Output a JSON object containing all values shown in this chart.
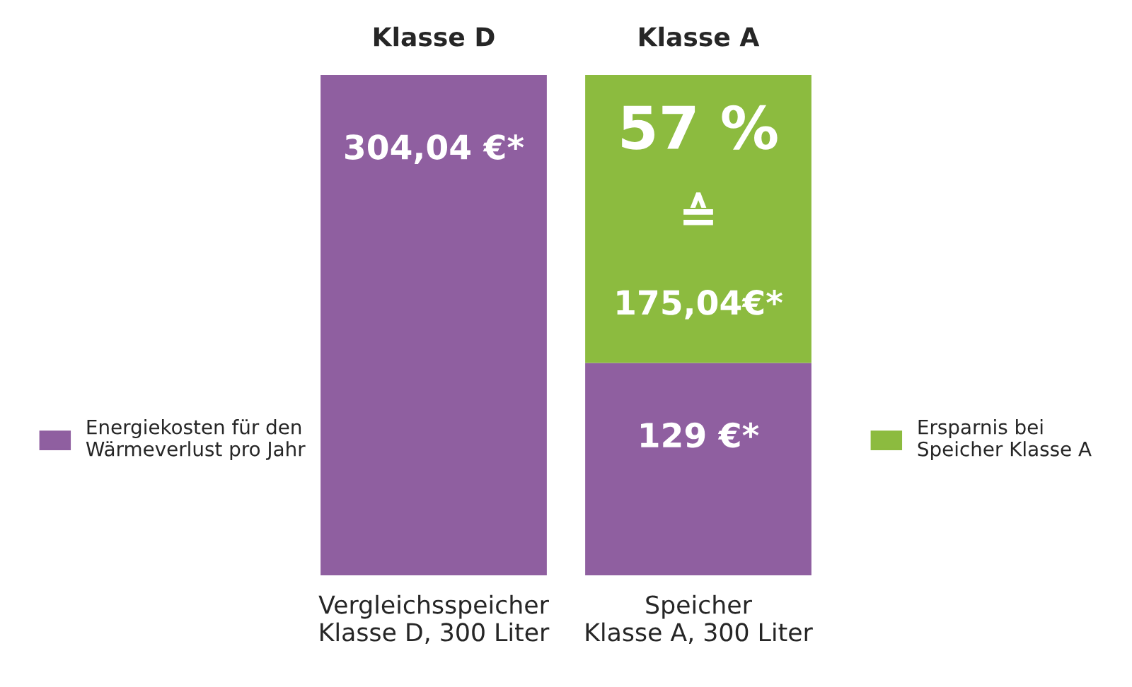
{
  "chart_data": {
    "type": "bar",
    "stacked": true,
    "categories": [
      "Vergleichsspeicher\nKlasse D, 300 Liter",
      "Speicher\nKlasse A, 300 Liter"
    ],
    "series": [
      {
        "name": "Energiekosten für den\nWärmeverlust pro Jahr",
        "color": "#8f5fa0",
        "values": [
          304.04,
          129
        ],
        "value_labels": [
          "304,04 €*",
          "129 €*"
        ]
      },
      {
        "name": "Ersparnis bei\nSpeicher Klasse A",
        "color": "#8cbb3f",
        "values": [
          null,
          175.04
        ],
        "value_labels": [
          null,
          "57 %\n≙\n175,04€*"
        ]
      }
    ],
    "annotations": [
      {
        "text": "Klasse D",
        "x": "Vergleichsspeicher\nKlasse D, 300 Liter",
        "y": 304.04
      },
      {
        "text": "Klasse A",
        "x": "Speicher\nKlasse A, 300 Liter",
        "y": 304.04
      }
    ],
    "legend": "left",
    "grid": false
  }
}
